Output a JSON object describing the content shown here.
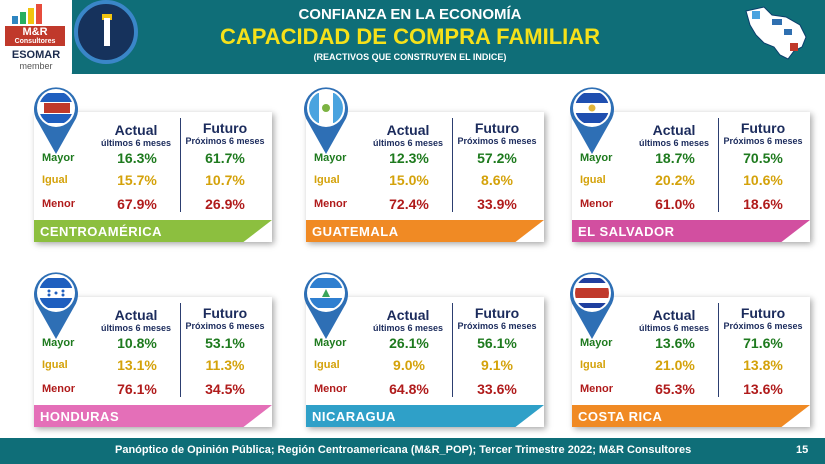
{
  "header": {
    "logo_text": "M&R",
    "logo_sub": "Consultores",
    "esomar": "ESOMAR",
    "esomar_member": "member",
    "title_line1": "CONFIANZA EN LA ECONOMÍA",
    "title_line2": "CAPACIDAD DE COMPRA FAMILIAR",
    "title_line3": "(REACTIVOS QUE CONSTRUYEN EL INDICE)"
  },
  "labels": {
    "actual": "Actual",
    "actual_sub": "últimos 6 meses",
    "futuro": "Futuro",
    "futuro_sub": "Próximos 6 meses",
    "mayor": "Mayor",
    "igual": "Igual",
    "menor": "Menor"
  },
  "colors": {
    "header": "#0f6e78",
    "mayor": "#1e7a1e",
    "igual": "#d4a20a",
    "menor": "#b01b1b",
    "banner_centroamerica": "#8cbf3f",
    "banner_guatemala": "#f08a24",
    "banner_el_salvador": "#d24fa0",
    "banner_honduras": "#e46fb8",
    "banner_nicaragua": "#2fa0c8",
    "banner_costa_rica": "#f08a24"
  },
  "cards": [
    {
      "name": "CENTROAMÉRICA",
      "actual": [
        "16.3%",
        "15.7%",
        "67.9%"
      ],
      "futuro": [
        "61.7%",
        "10.7%",
        "26.9%"
      ]
    },
    {
      "name": "GUATEMALA",
      "actual": [
        "12.3%",
        "15.0%",
        "72.4%"
      ],
      "futuro": [
        "57.2%",
        "8.6%",
        "33.9%"
      ]
    },
    {
      "name": "EL SALVADOR",
      "actual": [
        "18.7%",
        "20.2%",
        "61.0%"
      ],
      "futuro": [
        "70.5%",
        "10.6%",
        "18.6%"
      ]
    },
    {
      "name": "HONDURAS",
      "actual": [
        "10.8%",
        "13.1%",
        "76.1%"
      ],
      "futuro": [
        "53.1%",
        "11.3%",
        "34.5%"
      ]
    },
    {
      "name": "NICARAGUA",
      "actual": [
        "26.1%",
        "9.0%",
        "64.8%"
      ],
      "futuro": [
        "56.1%",
        "9.1%",
        "33.6%"
      ]
    },
    {
      "name": "COSTA RICA",
      "actual": [
        "13.6%",
        "21.0%",
        "65.3%"
      ],
      "futuro": [
        "71.6%",
        "13.8%",
        "13.6%"
      ]
    }
  ],
  "footer": {
    "text": "Panóptico de Opinión Pública; Región Centroamericana (M&R_POP); Tercer Trimestre 2022; M&R Consultores",
    "page": "15"
  }
}
